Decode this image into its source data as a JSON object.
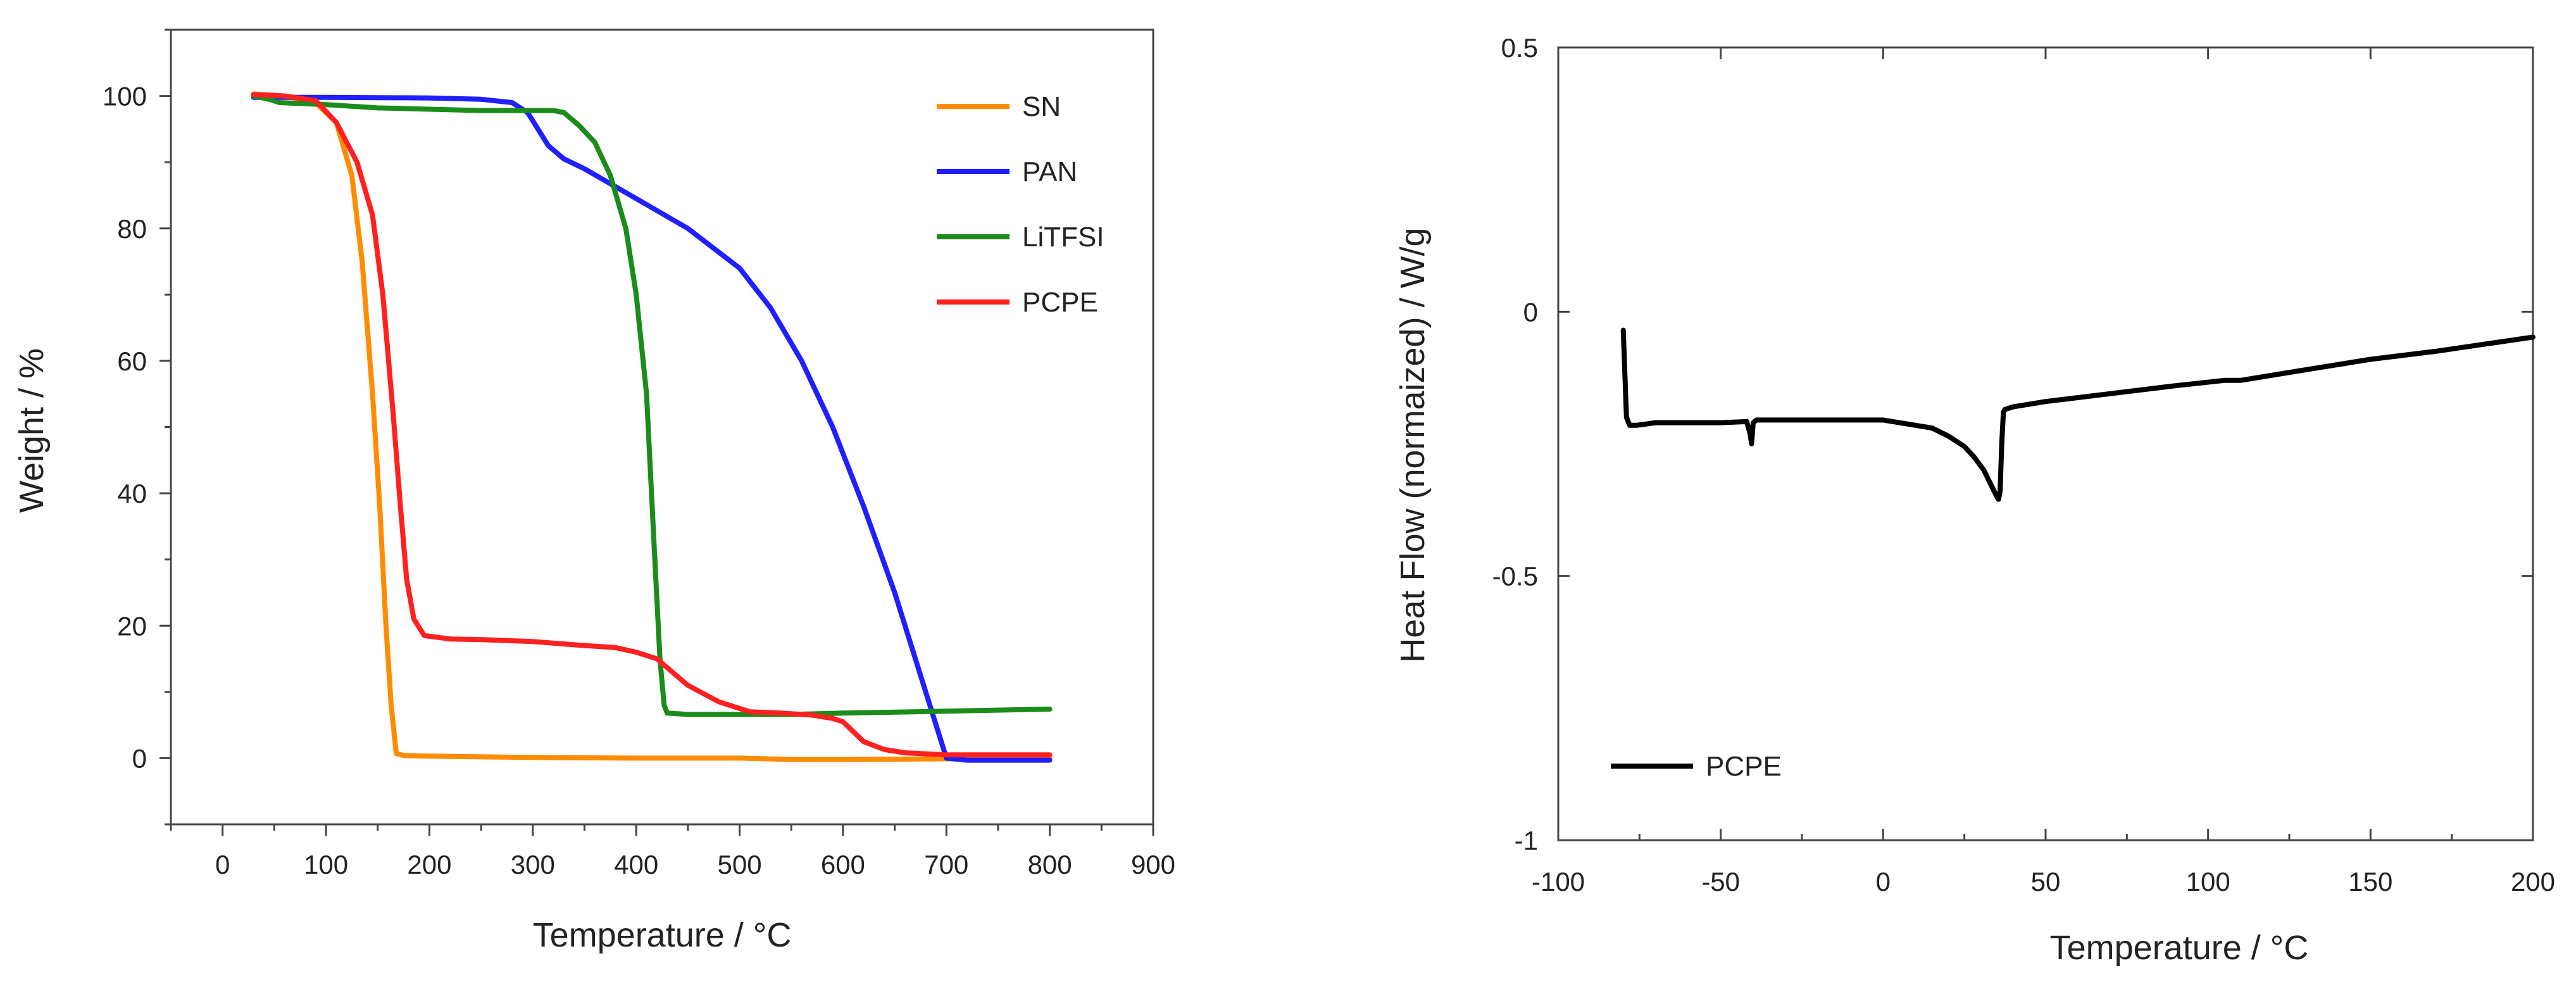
{
  "chart_data": [
    {
      "type": "line",
      "title": "",
      "xlabel": "Temperature / °C",
      "ylabel": "Weight / %",
      "xlim": [
        -50,
        900
      ],
      "ylim": [
        -10,
        110
      ],
      "xticks": [
        0,
        100,
        200,
        300,
        400,
        500,
        600,
        700,
        800,
        900
      ],
      "yticks": [
        0,
        20,
        40,
        60,
        80,
        100
      ],
      "legend_position": "top-right",
      "series": [
        {
          "name": "SN",
          "color": "#ff8c00",
          "x": [
            30,
            60,
            90,
            110,
            125,
            135,
            145,
            152,
            158,
            163,
            168,
            175,
            200,
            300,
            400,
            500,
            550,
            600,
            700,
            800
          ],
          "y": [
            100.3,
            100,
            99,
            96,
            88,
            75,
            55,
            38,
            20,
            8,
            0.7,
            0.4,
            0.3,
            0.1,
            0,
            0,
            -0.2,
            -0.2,
            -0.1,
            0
          ]
        },
        {
          "name": "PAN",
          "color": "#1f1fff",
          "x": [
            30,
            100,
            200,
            250,
            280,
            295,
            305,
            315,
            330,
            350,
            400,
            450,
            500,
            530,
            560,
            590,
            620,
            650,
            680,
            700,
            720,
            800
          ],
          "y": [
            99.8,
            99.8,
            99.7,
            99.5,
            99,
            97.5,
            95,
            92.5,
            90.5,
            89,
            84.5,
            80,
            74,
            68,
            60,
            50,
            38,
            25,
            10,
            0,
            -0.3,
            -0.3
          ]
        },
        {
          "name": "LiTFSI",
          "color": "#1b8c1b",
          "x": [
            30,
            45,
            55,
            100,
            150,
            200,
            250,
            300,
            320,
            330,
            345,
            360,
            375,
            390,
            400,
            410,
            418,
            423,
            427,
            430,
            450,
            500,
            550,
            600,
            700,
            800
          ],
          "y": [
            100,
            99.5,
            99,
            98.7,
            98.2,
            98,
            97.8,
            97.8,
            97.8,
            97.5,
            95.5,
            93,
            88,
            80,
            70,
            55,
            30,
            15,
            8,
            6.8,
            6.6,
            6.6,
            6.6,
            6.8,
            7.1,
            7.4
          ]
        },
        {
          "name": "PCPE",
          "color": "#ff2020",
          "x": [
            30,
            60,
            90,
            110,
            130,
            145,
            155,
            165,
            172,
            178,
            185,
            195,
            220,
            250,
            300,
            350,
            380,
            400,
            420,
            450,
            480,
            510,
            540,
            570,
            590,
            600,
            610,
            620,
            640,
            660,
            700,
            800
          ],
          "y": [
            100.2,
            100,
            99.3,
            96,
            90,
            82,
            70,
            52,
            38,
            27,
            21,
            18.5,
            18,
            17.9,
            17.6,
            17,
            16.7,
            16,
            15,
            11,
            8.5,
            7,
            6.8,
            6.5,
            6,
            5.5,
            4,
            2.5,
            1.3,
            0.8,
            0.5,
            0.5
          ]
        }
      ]
    },
    {
      "type": "line",
      "title": "",
      "xlabel": "Temperature / °C",
      "ylabel": "Heat Flow (normaized) / W/g",
      "xlim": [
        -100,
        200
      ],
      "ylim": [
        -1,
        0.5
      ],
      "xticks": [
        -100,
        -50,
        0,
        50,
        100,
        150,
        200
      ],
      "yticks": [
        -1,
        -0.5,
        0,
        0.5
      ],
      "ytick_labels": [
        "-1",
        "-0.5",
        "0",
        "0.5"
      ],
      "legend_position": "bottom-left",
      "series": [
        {
          "name": "PCPE",
          "color": "#000000",
          "x": [
            -80,
            -79.6,
            -79,
            -78,
            -76,
            -70,
            -60,
            -50,
            -42,
            -41,
            -40.5,
            -40,
            -39,
            -35,
            -20,
            -5,
            0,
            5,
            15,
            20,
            25,
            28,
            31,
            33,
            35,
            35.5,
            36,
            36.5,
            37,
            37.5,
            40,
            50,
            70,
            90,
            105,
            110,
            130,
            150,
            170,
            200
          ],
          "y": [
            -0.035,
            -0.1,
            -0.2,
            -0.215,
            -0.215,
            -0.21,
            -0.21,
            -0.21,
            -0.208,
            -0.23,
            -0.25,
            -0.21,
            -0.205,
            -0.205,
            -0.205,
            -0.205,
            -0.205,
            -0.21,
            -0.22,
            -0.235,
            -0.255,
            -0.275,
            -0.3,
            -0.325,
            -0.35,
            -0.355,
            -0.34,
            -0.25,
            -0.19,
            -0.185,
            -0.18,
            -0.17,
            -0.155,
            -0.14,
            -0.13,
            -0.13,
            -0.11,
            -0.09,
            -0.075,
            -0.048
          ]
        }
      ]
    }
  ]
}
